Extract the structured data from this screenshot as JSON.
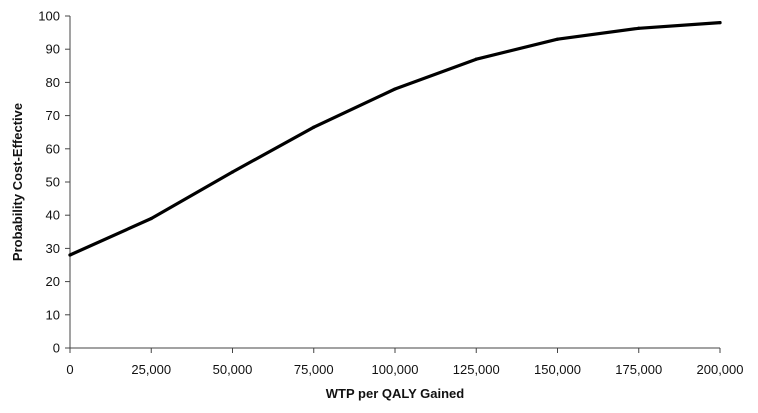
{
  "chart_data": {
    "type": "line",
    "title": "",
    "xlabel": "WTP per QALY Gained",
    "ylabel": "Probability Cost-Effective",
    "x": [
      0,
      25000,
      50000,
      75000,
      100000,
      125000,
      150000,
      175000,
      200000
    ],
    "series": [
      {
        "values": [
          28,
          39,
          53,
          66.5,
          78,
          87,
          93,
          96.3,
          98
        ],
        "color": "#000000"
      }
    ],
    "xlim": [
      0,
      200000
    ],
    "ylim": [
      0,
      100
    ],
    "x_ticks": [
      0,
      25000,
      50000,
      75000,
      100000,
      125000,
      150000,
      175000,
      200000
    ],
    "x_tick_labels": [
      "0",
      "25,000",
      "50,000",
      "75,000",
      "100,000",
      "125,000",
      "150,000",
      "175,000",
      "200,000"
    ],
    "y_ticks": [
      0,
      10,
      20,
      30,
      40,
      50,
      60,
      70,
      80,
      90,
      100
    ],
    "y_tick_labels": [
      "0",
      "10",
      "20",
      "30",
      "40",
      "50",
      "60",
      "70",
      "80",
      "90",
      "100"
    ],
    "grid": false,
    "legend": "none"
  }
}
